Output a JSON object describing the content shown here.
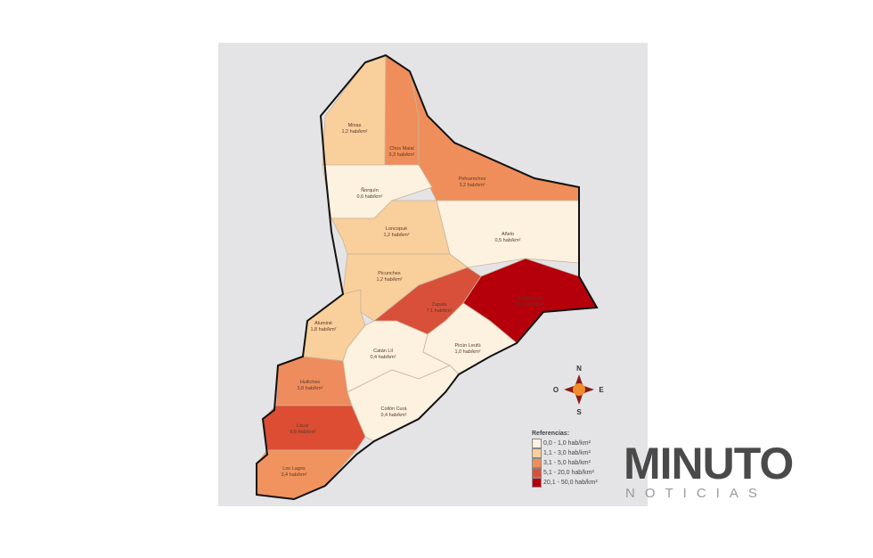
{
  "map": {
    "departments": [
      {
        "name": "Minas",
        "density": "1,2 hab/km²",
        "color": "#f9cf9c"
      },
      {
        "name": "Chos Malal",
        "density": "3,3 hab/km²",
        "color": "#ef8e5a"
      },
      {
        "name": "Pehuenches",
        "density": "3,2 hab/km²",
        "color": "#ef8e5a"
      },
      {
        "name": "Ñorquín",
        "density": "0,6 hab/km²",
        "color": "#fdf1e0"
      },
      {
        "name": "Loncopué",
        "density": "1,2 hab/km²",
        "color": "#f9cf9c"
      },
      {
        "name": "Añelo",
        "density": "0,5 hab/km²",
        "color": "#fdf1e0"
      },
      {
        "name": "Picunches",
        "density": "1,2 hab/km²",
        "color": "#f9cf9c"
      },
      {
        "name": "Zapala",
        "density": "7,1 hab/km²",
        "color": "#d9503a"
      },
      {
        "name": "Confluencia",
        "density": "50,0 hab/km²",
        "color": "#b5000c"
      },
      {
        "name": "Aluminé",
        "density": "1,8 hab/km²",
        "color": "#f9cf9c"
      },
      {
        "name": "Catán Lil",
        "density": "0,4 hab/km²",
        "color": "#fdf1e0"
      },
      {
        "name": "Picún Leufú",
        "density": "1,0 hab/km²",
        "color": "#fdf1e0"
      },
      {
        "name": "Huiliches",
        "density": "3,8 hab/km²",
        "color": "#ee8c5d"
      },
      {
        "name": "Collón Curá",
        "density": "0,4 hab/km²",
        "color": "#fdf1e0"
      },
      {
        "name": "Lácar",
        "density": "9,6 hab/km²",
        "color": "#dc4d33"
      },
      {
        "name": "Los Lagos",
        "density": "3,4 hab/km²",
        "color": "#f0935f"
      }
    ],
    "compass": {
      "n": "N",
      "s": "S",
      "e": "E",
      "o": "O"
    },
    "legend": {
      "title": "Referencias:",
      "items": [
        {
          "label": "0,0 - 1,0 hab/km²",
          "color": "#fdf1e0"
        },
        {
          "label": "1,1 - 3,0 hab/km²",
          "color": "#f9cf9c"
        },
        {
          "label": "3,1 - 5,0 hab/km²",
          "color": "#ef8e5a"
        },
        {
          "label": "5,1 - 20,0 hab/km²",
          "color": "#d9503a"
        },
        {
          "label": "20,1 - 50,0 hab/km²",
          "color": "#b5000c"
        }
      ]
    }
  },
  "logo": {
    "main": "MINUTO",
    "sub": "NOTICIAS",
    "accent": "#c9453b"
  }
}
